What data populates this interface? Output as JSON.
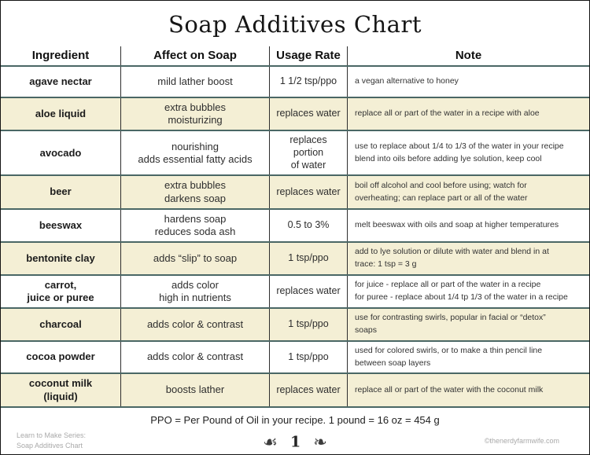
{
  "page": {
    "title": "Soap Additives Chart",
    "footnote": "PPO = Per Pound of Oil in your recipe. 1 pound = 16 oz = 454 g",
    "footer": {
      "series_line1": "Learn to Make Series:",
      "series_line2": "Soap Additives Chart",
      "flourish_left": "☙",
      "page_number": "1",
      "flourish_right": "❧",
      "copyright": "©thenerdyfarmwife.com"
    }
  },
  "colors": {
    "row_highlight": "#f4efd5",
    "divider_teal": "#4a6765",
    "column_rule": "#2e2e2e",
    "muted_text": "#a9a9a9"
  },
  "table": {
    "headers": [
      "Ingredient",
      "Affect on Soap",
      "Usage Rate",
      "Note"
    ],
    "rows": [
      {
        "ingredient": "agave nectar",
        "affect": "mild lather boost",
        "usage": "1 1/2 tsp/ppo",
        "note": "a vegan alternative to honey"
      },
      {
        "ingredient": "aloe liquid",
        "affect": "extra bubbles\nmoisturizing",
        "usage": "replaces water",
        "note": "replace all or part of the water in a recipe with aloe"
      },
      {
        "ingredient": "avocado",
        "affect": "nourishing\nadds essential fatty acids",
        "usage": "replaces portion\nof water",
        "note": "use to replace about 1/4 to 1/3 of the water in your recipe\nblend into oils before adding lye solution, keep cool"
      },
      {
        "ingredient": "beer",
        "affect": "extra bubbles\ndarkens soap",
        "usage": "replaces water",
        "note": "boil off alcohol and cool before using; watch for\noverheating; can replace part or all of the water"
      },
      {
        "ingredient": "beeswax",
        "affect": "hardens soap\nreduces soda ash",
        "usage": "0.5 to 3%",
        "note": "melt beeswax with oils and soap at higher temperatures"
      },
      {
        "ingredient": "bentonite clay",
        "affect": "adds “slip” to soap",
        "usage": "1 tsp/ppo",
        "note": "add to lye solution or dilute with water and blend in at\ntrace: 1 tsp = 3 g"
      },
      {
        "ingredient": "carrot,\njuice or puree",
        "affect": "adds color\nhigh in nutrients",
        "usage": "replaces water",
        "note": "for juice - replace all or part of the water in a recipe\nfor puree - replace about 1/4 tp 1/3 of the water in a recipe"
      },
      {
        "ingredient": "charcoal",
        "affect": "adds color & contrast",
        "usage": "1 tsp/ppo",
        "note": "use for contrasting swirls, popular in facial or “detox”\nsoaps"
      },
      {
        "ingredient": "cocoa powder",
        "affect": "adds color & contrast",
        "usage": "1 tsp/ppo",
        "note": "used for colored swirls, or to make a thin pencil line\nbetween soap layers"
      },
      {
        "ingredient": "coconut milk\n(liquid)",
        "affect": "boosts lather",
        "usage": "replaces water",
        "note": "replace all or part of the water with the coconut milk"
      }
    ]
  }
}
